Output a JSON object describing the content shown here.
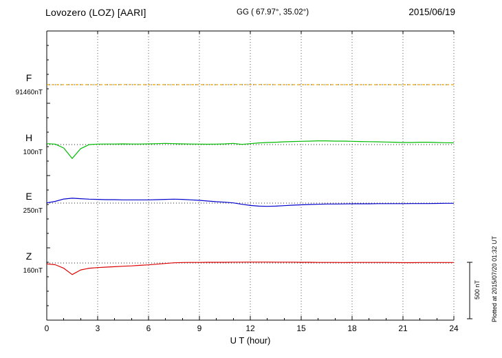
{
  "header": {
    "station": "Lovozero (LOZ)  [AARI]",
    "coords": "GG ( 67.97°,  35.02°)",
    "date": "2015/06/19"
  },
  "annotations": {
    "scale_bar_label": "500 nT",
    "plotted_at": "Plotted at 2015/07/20 01:32 UT"
  },
  "chart_data": {
    "type": "line",
    "title": "Lovozero (LOZ) [AARI] magnetogram 2015/06/19",
    "xlabel": "U T (hour)",
    "xlim": [
      0,
      24
    ],
    "x_ticks": [
      0,
      3,
      6,
      9,
      12,
      15,
      18,
      21,
      24
    ],
    "x_step_hours": 0.5,
    "grid": "vertical-dotted",
    "scale_bar_nT": 500,
    "legend_position": "left-margin",
    "series": [
      {
        "name": "F",
        "baseline_label": "91460nT",
        "color": "#e8a000",
        "dash": "4,3",
        "values": [
          0,
          0,
          0,
          0,
          0,
          0,
          0,
          0,
          0,
          1,
          1,
          0,
          0,
          0,
          0,
          0,
          0,
          0,
          0,
          0,
          0,
          0,
          1,
          1,
          1,
          1,
          1,
          0,
          0,
          0,
          0,
          0,
          0,
          0,
          0,
          0,
          0,
          0,
          0,
          0,
          0,
          0,
          0,
          0,
          0,
          0,
          0,
          0,
          0
        ]
      },
      {
        "name": "H",
        "baseline_label": "100nT",
        "color": "#00bb00",
        "values": [
          8,
          4,
          -30,
          -120,
          -35,
          0,
          4,
          5,
          5,
          6,
          5,
          5,
          6,
          8,
          10,
          8,
          6,
          5,
          4,
          3,
          4,
          6,
          10,
          2,
          8,
          14,
          18,
          20,
          24,
          26,
          28,
          30,
          32,
          32,
          30,
          30,
          28,
          26,
          25,
          24,
          22,
          20,
          18,
          18,
          20,
          20,
          18,
          16,
          15
        ]
      },
      {
        "name": "E",
        "baseline_label": "250nT",
        "color": "#0000cc",
        "values": [
          2,
          15,
          35,
          42,
          38,
          34,
          32,
          30,
          30,
          28,
          28,
          28,
          28,
          30,
          32,
          34,
          32,
          28,
          24,
          18,
          12,
          8,
          2,
          -10,
          -20,
          -26,
          -28,
          -26,
          -22,
          -18,
          -15,
          -12,
          -10,
          -8,
          -8,
          -7,
          -6,
          -6,
          -6,
          -5,
          -5,
          -5,
          -5,
          -4,
          -4,
          -4,
          -3,
          -2,
          -2
        ]
      },
      {
        "name": "Z",
        "baseline_label": "160nT",
        "color": "#dd0000",
        "values": [
          -8,
          -15,
          -45,
          -100,
          -60,
          -45,
          -40,
          -36,
          -32,
          -28,
          -25,
          -20,
          -16,
          -10,
          -4,
          2,
          4,
          5,
          5,
          6,
          6,
          6,
          7,
          7,
          8,
          8,
          8,
          7,
          7,
          7,
          6,
          6,
          5,
          5,
          5,
          4,
          5,
          5,
          5,
          5,
          5,
          4,
          3,
          3,
          4,
          4,
          4,
          4,
          4
        ]
      }
    ]
  }
}
